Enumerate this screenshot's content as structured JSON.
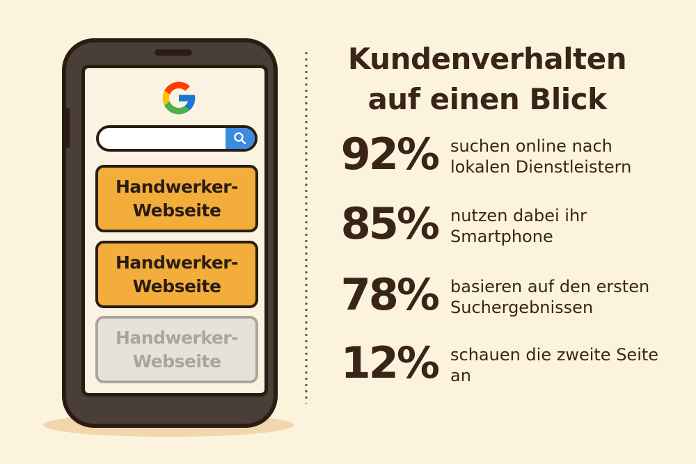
{
  "phone": {
    "results": [
      {
        "line1": "Handwerker-",
        "line2": "Webseite"
      },
      {
        "line1": "Handwerker-",
        "line2": "Webseite"
      },
      {
        "line1": "Handwerker-",
        "line2": "Webseite"
      }
    ]
  },
  "heading": {
    "line1": "Kundenverhalten",
    "line2": "auf einen Blick"
  },
  "stats": [
    {
      "value": "92%",
      "line1": "suchen online nach",
      "line2": "lokalen Dienstleistern"
    },
    {
      "value": "85%",
      "line1": "nutzen dabei ihr",
      "line2": "Smartphone"
    },
    {
      "value": "78%",
      "line1": "basieren auf den ersten",
      "line2": "Suchergebnissen"
    },
    {
      "value": "12%",
      "line1": "schauen die zweite Seite",
      "line2": "an"
    }
  ],
  "icons": {
    "search": "magnifier-icon",
    "logo": "google-g-logo"
  },
  "colors": {
    "background": "#fcf3dc",
    "highlight_result": "#f2ad3a",
    "faded_result": "#e6e1da",
    "search_button": "#3b8be0",
    "text": "#3a2417"
  }
}
